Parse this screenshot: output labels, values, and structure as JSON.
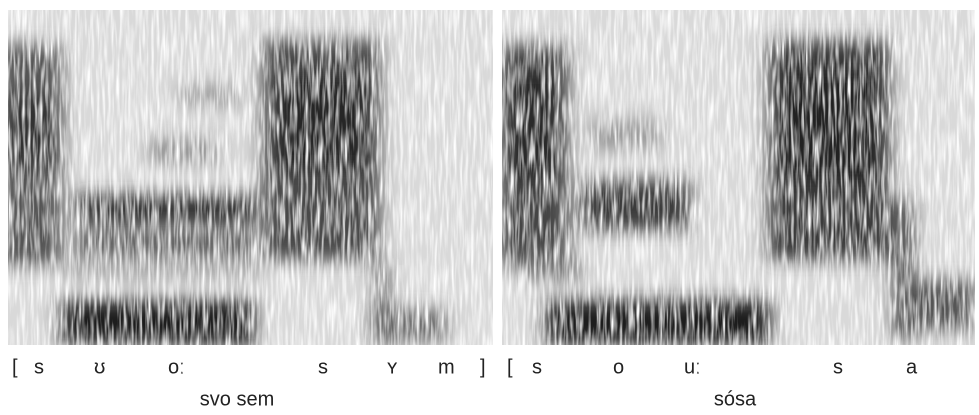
{
  "panels": [
    {
      "segments": [
        "[",
        "s",
        "ʊ",
        "oː",
        "s",
        "ʏ",
        "m",
        "]"
      ],
      "caption": "svo sem"
    },
    {
      "segments": [
        "[",
        "s",
        "o",
        "uː",
        "s",
        "a"
      ],
      "caption": "sósa"
    }
  ]
}
